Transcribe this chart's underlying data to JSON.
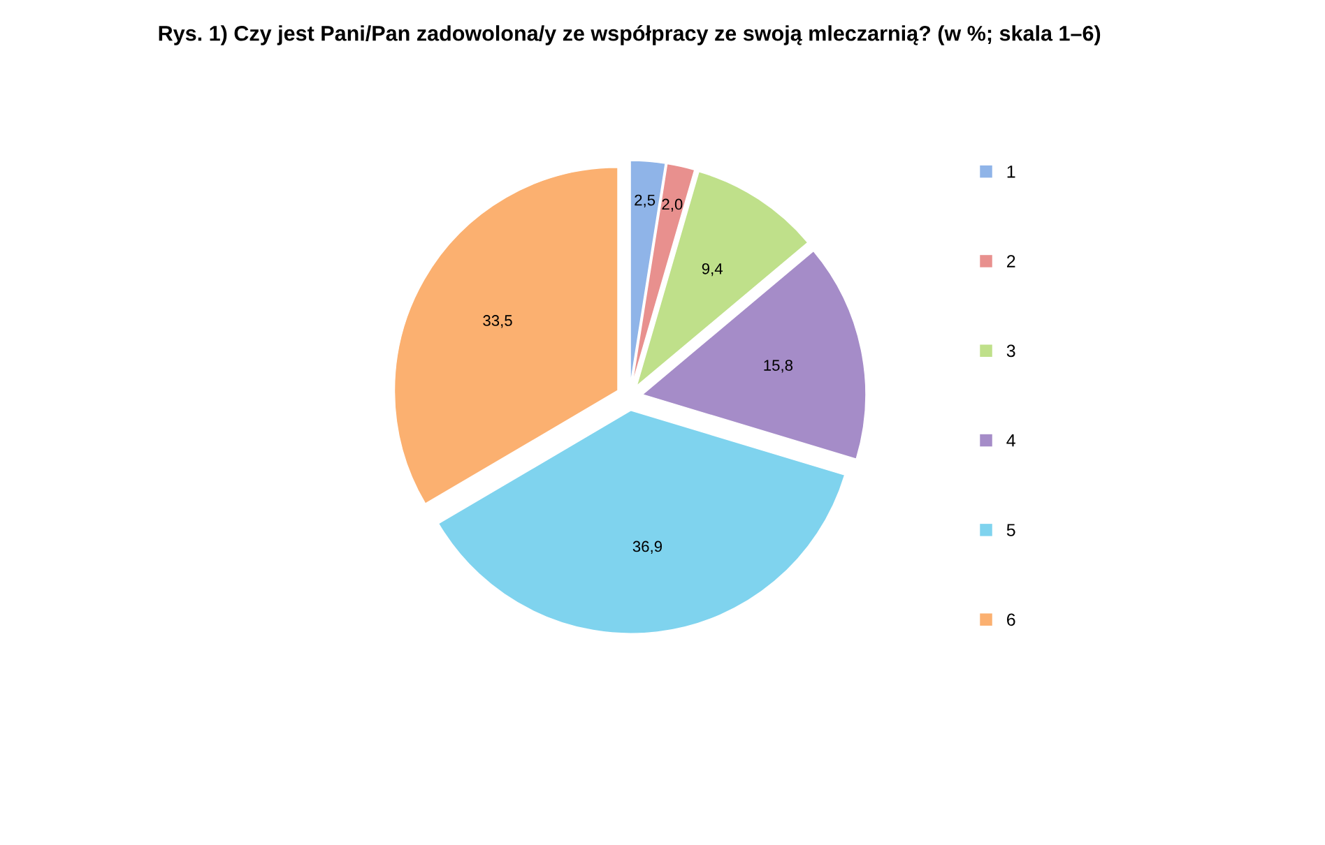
{
  "chart_data": {
    "type": "pie",
    "title": "Rys. 1) Czy jest Pani/Pan zadowolona/y ze współpracy ze swoją mleczarnią? (w %; skala 1–6)",
    "categories": [
      "1",
      "2",
      "3",
      "4",
      "5",
      "6"
    ],
    "values": [
      2.5,
      2.0,
      9.4,
      15.8,
      36.9,
      33.5
    ],
    "value_labels": [
      "2,5",
      "2,0",
      "9,4",
      "15,8",
      "36,9",
      "33,5"
    ],
    "colors": [
      "#8fb4e8",
      "#e8908e",
      "#bfe08a",
      "#a58cc8",
      "#7fd3ee",
      "#fbb070"
    ],
    "legend": "right"
  }
}
